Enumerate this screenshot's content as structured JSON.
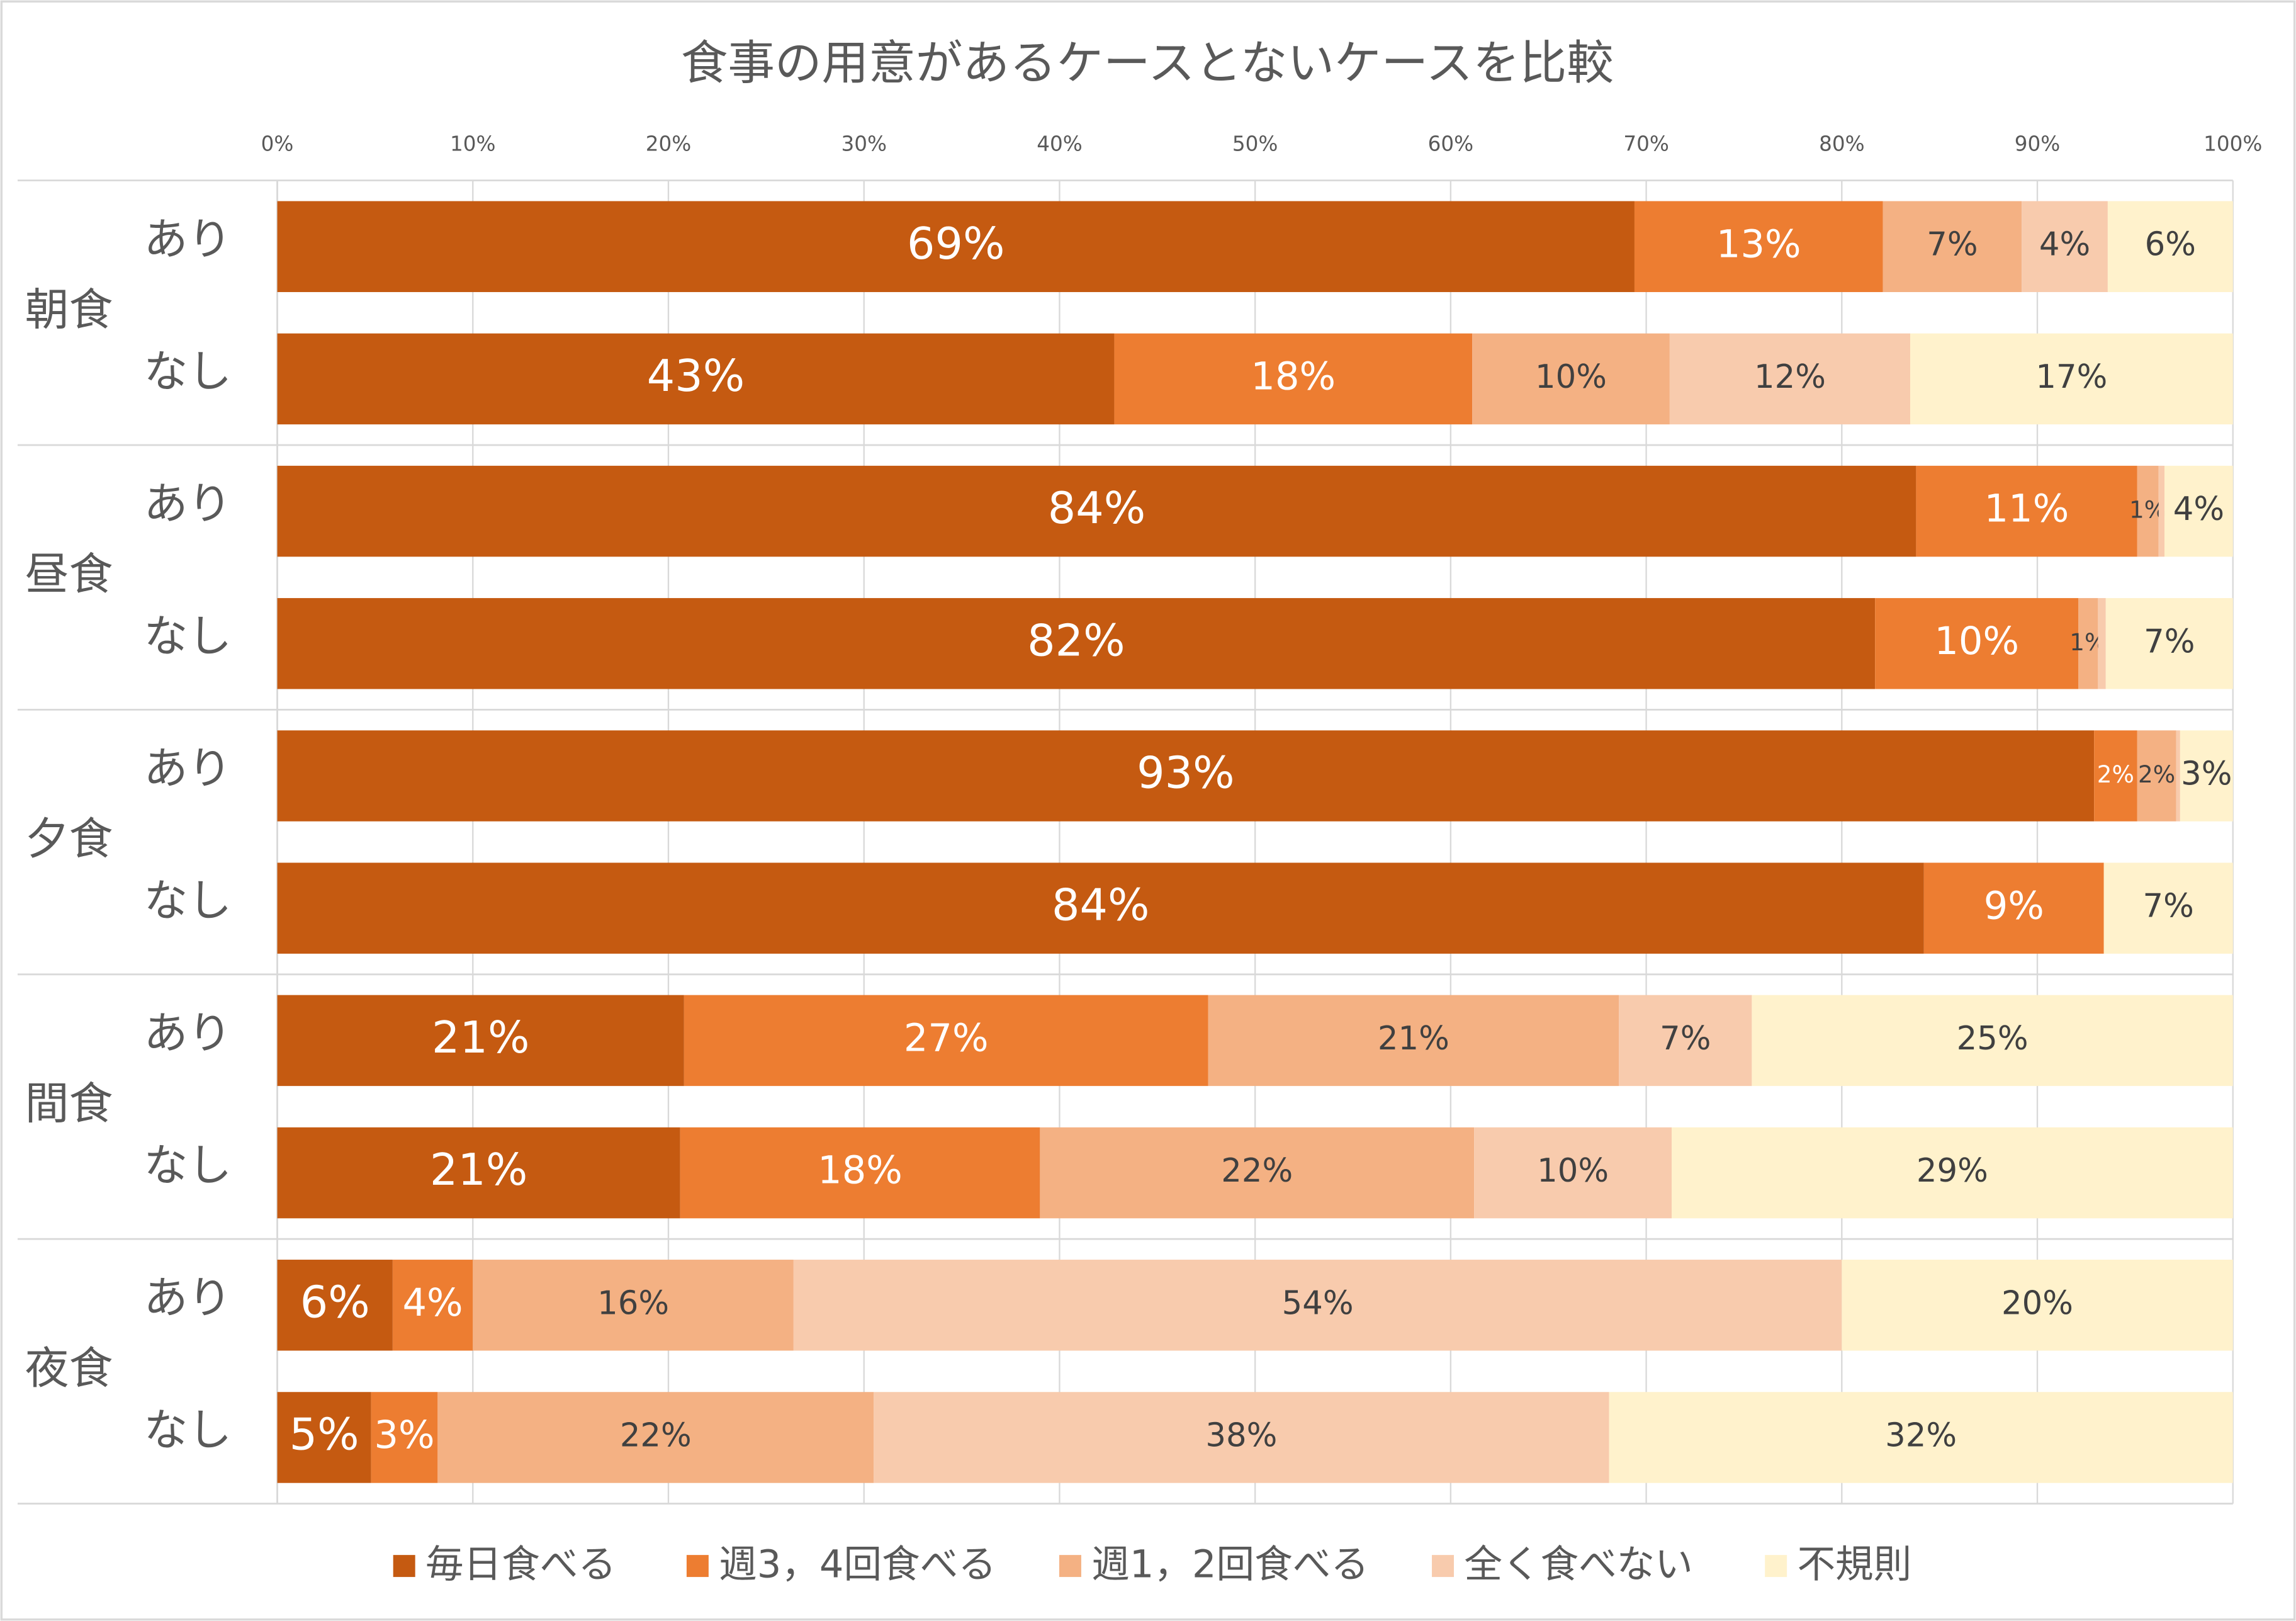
{
  "chart_data": {
    "type": "stacked_bar_horizontal",
    "title": "食事の用意があるケースとないケースを比較",
    "groups": [
      "朝食",
      "昼食",
      "夕食",
      "間食",
      "夜食"
    ],
    "categories": [
      "あり",
      "なし",
      "あり",
      "なし",
      "あり",
      "なし",
      "あり",
      "なし",
      "あり",
      "なし"
    ],
    "xlim": [
      0,
      100
    ],
    "xticks": [
      {
        "value": 0,
        "label": "0%"
      },
      {
        "value": 10,
        "label": "10%"
      },
      {
        "value": 20,
        "label": "20%"
      },
      {
        "value": 30,
        "label": "30%"
      },
      {
        "value": 40,
        "label": "40%"
      },
      {
        "value": 50,
        "label": "50%"
      },
      {
        "value": 60,
        "label": "60%"
      },
      {
        "value": 70,
        "label": "70%"
      },
      {
        "value": 80,
        "label": "80%"
      },
      {
        "value": 90,
        "label": "90%"
      },
      {
        "value": 100,
        "label": "100%"
      }
    ],
    "grid": true,
    "legend": "bottom",
    "series": [
      {
        "name": "毎日食べる",
        "color": "#c55a11",
        "values": [
          69.4,
          42.8,
          83.8,
          81.7,
          92.9,
          84.2,
          20.8,
          20.6,
          5.9,
          4.8
        ],
        "value_labels": [
          "69%",
          "43%",
          "84%",
          "82%",
          "93%",
          "84%",
          "21%",
          "21%",
          "6%",
          "5%"
        ]
      },
      {
        "name": "週3，4回食べる",
        "color": "#ed7d31",
        "values": [
          12.7,
          18.3,
          11.3,
          10.4,
          2.2,
          9.2,
          26.8,
          18.4,
          4.1,
          3.4
        ],
        "value_labels": [
          "13%",
          "18%",
          "11%",
          "10%",
          "2%",
          "9%",
          "27%",
          "18%",
          "4%",
          "3%"
        ]
      },
      {
        "name": "週1，2回食べる",
        "color": "#f4b183",
        "values": [
          7.1,
          10.1,
          1.1,
          1.0,
          2.0,
          0,
          21.0,
          22.2,
          16.4,
          22.3
        ],
        "value_labels": [
          "7%",
          "10%",
          "1%",
          "1%",
          "2%",
          null,
          "21%",
          "22%",
          "16%",
          "22%"
        ]
      },
      {
        "name": "全く食べない",
        "color": "#f8cbad",
        "values": [
          4.4,
          12.3,
          0.3,
          0.4,
          0.2,
          0,
          6.8,
          10.1,
          53.6,
          37.6
        ],
        "value_labels": [
          "4%",
          "12%",
          null,
          null,
          null,
          null,
          "7%",
          "10%",
          "54%",
          "38%"
        ]
      },
      {
        "name": "不規則",
        "color": "#fff2cc",
        "values": [
          6.4,
          16.5,
          3.5,
          6.5,
          2.7,
          6.6,
          24.6,
          28.7,
          20.0,
          31.9
        ],
        "value_labels": [
          "6%",
          "17%",
          "4%",
          "7%",
          "3%",
          "7%",
          "25%",
          "29%",
          "20%",
          "32%"
        ]
      }
    ]
  }
}
